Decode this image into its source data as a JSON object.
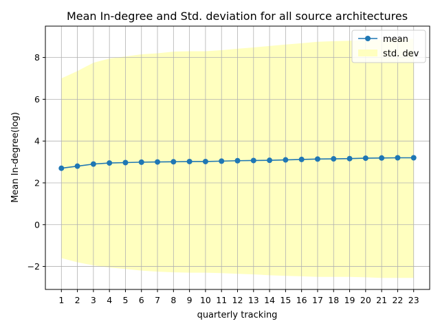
{
  "chart_data": {
    "type": "line",
    "title": "Mean In-degree and Std. deviation for all source architectures",
    "xlabel": "quarterly tracking",
    "ylabel": "Mean In-degree(log)",
    "x": [
      1,
      2,
      3,
      4,
      5,
      6,
      7,
      8,
      9,
      10,
      11,
      12,
      13,
      14,
      15,
      16,
      17,
      18,
      19,
      20,
      21,
      22,
      23
    ],
    "xlim": [
      0,
      24
    ],
    "ylim": [
      -3.1,
      9.5
    ],
    "yticks": [
      -2,
      0,
      2,
      4,
      6,
      8
    ],
    "grid": true,
    "legend_position": "top-right",
    "series": [
      {
        "name": "mean",
        "kind": "line",
        "color": "#1f77b4",
        "marker": "circle",
        "values": [
          2.7,
          2.8,
          2.9,
          2.95,
          2.97,
          2.99,
          3.0,
          3.01,
          3.02,
          3.02,
          3.04,
          3.06,
          3.07,
          3.08,
          3.1,
          3.12,
          3.14,
          3.15,
          3.16,
          3.18,
          3.19,
          3.2,
          3.2
        ]
      },
      {
        "name": "std. dev",
        "kind": "band",
        "color": "#ffffbf",
        "upper": [
          7.0,
          7.35,
          7.75,
          7.95,
          8.05,
          8.15,
          8.2,
          8.28,
          8.3,
          8.3,
          8.35,
          8.42,
          8.48,
          8.55,
          8.62,
          8.68,
          8.75,
          8.78,
          8.8,
          8.82,
          8.85,
          8.87,
          8.9
        ],
        "lower": [
          -1.6,
          -1.8,
          -1.95,
          -2.05,
          -2.12,
          -2.2,
          -2.25,
          -2.28,
          -2.3,
          -2.3,
          -2.32,
          -2.35,
          -2.38,
          -2.42,
          -2.45,
          -2.47,
          -2.5,
          -2.5,
          -2.5,
          -2.52,
          -2.55,
          -2.55,
          -2.55
        ]
      }
    ]
  }
}
